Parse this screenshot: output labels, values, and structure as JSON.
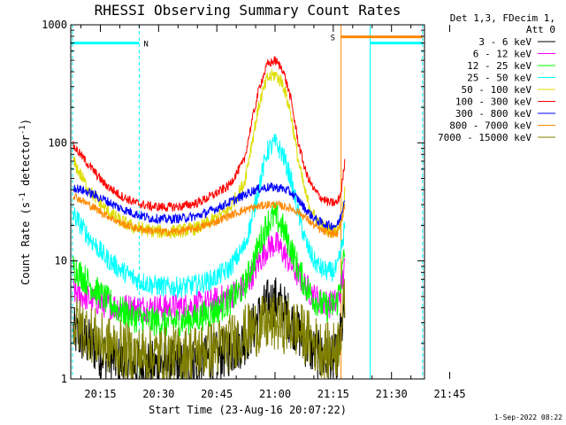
{
  "chart_data": {
    "type": "line",
    "title": "RHESSI Observing Summary Count Rates",
    "xlabel": "Start Time (23-Aug-16 20:07:22)",
    "ylabel_main": "Count Rate (s",
    "ylabel_exp1": "-1",
    "ylabel_mid": " detector",
    "ylabel_exp2": "-1",
    "ylabel_end": ")",
    "xlim": [
      7.37,
      98.5
    ],
    "ylim": [
      1,
      1000
    ],
    "yscale": "log",
    "x_ticks": [
      {
        "value": 15,
        "label": "20:15"
      },
      {
        "value": 30,
        "label": "20:30"
      },
      {
        "value": 45,
        "label": "20:45"
      },
      {
        "value": 60,
        "label": "21:00"
      },
      {
        "value": 75,
        "label": "21:15"
      },
      {
        "value": 90,
        "label": "21:30"
      },
      {
        "value": 105,
        "label": "21:45"
      }
    ],
    "y_ticks": [
      {
        "value": 1,
        "label": "1"
      },
      {
        "value": 10,
        "label": "10"
      },
      {
        "value": 100,
        "label": "100"
      },
      {
        "value": 1000,
        "label": "1000"
      }
    ],
    "legend_header": [
      "Det 1,3, FDecim 1,",
      "Att 0"
    ],
    "legend_placement": "right",
    "series": [
      {
        "name": "3 - 6 keV",
        "color": "#000000",
        "x": [
          8,
          12,
          16,
          20,
          24,
          28,
          32,
          36,
          40,
          44,
          48,
          52,
          54,
          56,
          58,
          60,
          62,
          64,
          66,
          68,
          70,
          72,
          74,
          76,
          77,
          78
        ],
        "y": [
          2.5,
          2.0,
          1.6,
          1.4,
          1.3,
          1.3,
          1.3,
          1.3,
          1.4,
          1.5,
          1.7,
          2.1,
          2.6,
          3.4,
          4.3,
          4.6,
          4.0,
          3.2,
          2.5,
          2.0,
          1.7,
          1.5,
          1.4,
          1.5,
          2.5,
          4.0
        ]
      },
      {
        "name": "6 - 12 keV",
        "color": "#ff00ff",
        "x": [
          8,
          12,
          16,
          20,
          24,
          28,
          32,
          36,
          40,
          44,
          48,
          52,
          54,
          56,
          58,
          60,
          62,
          64,
          66,
          68,
          70,
          72,
          74,
          76,
          77,
          78
        ],
        "y": [
          5.5,
          4.8,
          4.3,
          4.1,
          4.0,
          4.0,
          4.0,
          4.1,
          4.2,
          4.5,
          5.0,
          6.0,
          7.5,
          10,
          13,
          14,
          12,
          9.5,
          7.5,
          6.0,
          5.0,
          4.5,
          4.3,
          4.5,
          6.0,
          9.0
        ]
      },
      {
        "name": "12 - 25 keV",
        "color": "#00ff00",
        "x": [
          8,
          12,
          16,
          20,
          24,
          28,
          32,
          36,
          40,
          44,
          48,
          52,
          54,
          56,
          58,
          60,
          62,
          64,
          66,
          68,
          70,
          72,
          74,
          76,
          77,
          78
        ],
        "y": [
          9.0,
          6.5,
          4.8,
          3.8,
          3.3,
          3.1,
          3.0,
          3.1,
          3.3,
          3.7,
          4.5,
          6.0,
          9.0,
          14,
          21,
          24,
          19,
          13,
          8.5,
          6.0,
          4.8,
          4.2,
          4.0,
          4.5,
          7.0,
          12
        ]
      },
      {
        "name": "25 - 50 keV",
        "color": "#00ffff",
        "x": [
          8,
          12,
          16,
          20,
          24,
          28,
          32,
          36,
          40,
          44,
          48,
          52,
          54,
          56,
          58,
          60,
          62,
          64,
          66,
          68,
          70,
          72,
          74,
          76,
          77,
          78
        ],
        "y": [
          25,
          16,
          11,
          8.5,
          7.0,
          6.3,
          6.0,
          6.0,
          6.3,
          7.0,
          8.5,
          13,
          22,
          45,
          85,
          100,
          80,
          50,
          25,
          14,
          10,
          8.5,
          8.0,
          8.5,
          12,
          20
        ]
      },
      {
        "name": "50 - 100 keV",
        "color": "#dddd00",
        "x": [
          8,
          12,
          16,
          20,
          24,
          28,
          32,
          36,
          40,
          44,
          48,
          52,
          54,
          56,
          58,
          60,
          62,
          64,
          66,
          68,
          70,
          72,
          74,
          76,
          77,
          78
        ],
        "y": [
          70,
          40,
          28,
          22,
          19,
          18,
          17.5,
          18,
          19,
          22,
          27,
          45,
          100,
          220,
          350,
          380,
          320,
          180,
          70,
          35,
          24,
          20,
          18,
          18,
          22,
          40
        ]
      },
      {
        "name": "100 - 300 keV",
        "color": "#ff0000",
        "x": [
          8,
          12,
          16,
          20,
          24,
          28,
          32,
          36,
          40,
          44,
          48,
          52,
          54,
          56,
          58,
          60,
          62,
          64,
          66,
          68,
          70,
          72,
          74,
          76,
          77,
          78
        ],
        "y": [
          95,
          65,
          45,
          36,
          31,
          29,
          28.5,
          29,
          31,
          36,
          43,
          70,
          150,
          300,
          460,
          500,
          420,
          240,
          100,
          55,
          40,
          34,
          31,
          31,
          38,
          70
        ]
      },
      {
        "name": "300 - 800 keV",
        "color": "#0000ff",
        "x": [
          8,
          12,
          16,
          20,
          24,
          28,
          32,
          36,
          40,
          44,
          48,
          52,
          54,
          56,
          58,
          60,
          62,
          64,
          66,
          68,
          70,
          72,
          74,
          76,
          77,
          78
        ],
        "y": [
          42,
          38,
          33,
          28,
          25,
          23,
          22.5,
          23,
          24,
          27,
          31,
          36,
          39,
          41,
          42,
          42,
          41,
          38,
          33,
          27,
          23,
          21,
          20,
          20,
          24,
          35
        ]
      },
      {
        "name": "800 - 7000 keV",
        "color": "#ff8800",
        "x": [
          8,
          12,
          16,
          20,
          24,
          28,
          32,
          36,
          40,
          44,
          48,
          52,
          54,
          56,
          58,
          60,
          62,
          64,
          66,
          68,
          70,
          72,
          74,
          76,
          77,
          78
        ],
        "y": [
          36,
          30,
          25,
          21,
          19,
          18,
          17.5,
          18,
          19,
          21,
          24,
          27,
          28,
          29,
          30,
          30,
          29,
          28,
          26,
          23,
          20,
          18,
          17,
          17,
          21,
          30
        ]
      },
      {
        "name": "7000 - 15000 keV",
        "color": "#808000",
        "x": [
          8,
          12,
          16,
          20,
          24,
          28,
          32,
          36,
          40,
          44,
          48,
          52,
          54,
          56,
          58,
          60,
          62,
          64,
          66,
          68,
          70,
          72,
          74,
          76,
          77,
          78
        ],
        "y": [
          3.0,
          2.5,
          2.0,
          1.8,
          1.6,
          1.6,
          1.6,
          1.6,
          1.7,
          1.8,
          2.0,
          2.4,
          2.6,
          2.8,
          2.9,
          3.0,
          2.9,
          2.8,
          2.6,
          2.3,
          2.0,
          1.8,
          1.7,
          1.8,
          2.8,
          4.5
        ]
      }
    ],
    "annotations": [
      {
        "label": "N",
        "color": "#00ffff",
        "y": 700,
        "x_start": 7.37,
        "x_end": 25.0
      },
      {
        "label": "S",
        "color": "#ff8800",
        "y": 790,
        "x_start": 77.0,
        "x_end": 98.0
      },
      {
        "label": "",
        "color": "#00ffff",
        "y": 700,
        "x_start": 84.5,
        "x_end": 98.0
      }
    ],
    "vlines": [
      {
        "x": 7.8,
        "color": "#00ffff",
        "style": "dashed"
      },
      {
        "x": 25.0,
        "color": "#00ffff",
        "style": "dashed"
      },
      {
        "x": 77.0,
        "color": "#ff8800",
        "style": "solid"
      },
      {
        "x": 84.5,
        "color": "#00ffff",
        "style": "solid"
      },
      {
        "x": 98.0,
        "color": "#00ffff",
        "style": "dashed"
      }
    ],
    "grid": false
  },
  "timestamp": "1-Sep-2022 08:22"
}
